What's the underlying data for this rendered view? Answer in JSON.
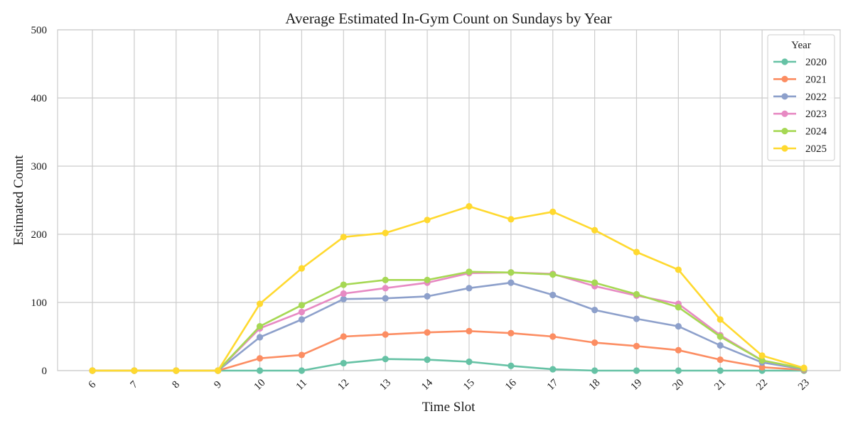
{
  "chart_data": {
    "type": "line",
    "title": "Average Estimated In-Gym Count on Sundays by Year",
    "xlabel": "Time Slot",
    "ylabel": "Estimated Count",
    "categories": [
      "6",
      "7",
      "8",
      "9",
      "10",
      "11",
      "12",
      "13",
      "14",
      "15",
      "16",
      "17",
      "18",
      "19",
      "20",
      "21",
      "22",
      "23"
    ],
    "ylim": [
      0,
      500
    ],
    "yticks": [
      0,
      100,
      200,
      300,
      400,
      500
    ],
    "grid": true,
    "legend": {
      "title": "Year",
      "placement": "top-right"
    },
    "series": [
      {
        "name": "2020",
        "color": "#66c2a5",
        "values": [
          0,
          0,
          0,
          0,
          0,
          0,
          11,
          17,
          16,
          13,
          7,
          2,
          0,
          0,
          0,
          0,
          0,
          0
        ]
      },
      {
        "name": "2021",
        "color": "#fc8d62",
        "values": [
          0,
          0,
          0,
          0,
          18,
          23,
          50,
          53,
          56,
          58,
          55,
          50,
          41,
          36,
          30,
          16,
          5,
          1
        ]
      },
      {
        "name": "2022",
        "color": "#8da0cb",
        "values": [
          0,
          0,
          0,
          0,
          49,
          75,
          105,
          106,
          109,
          121,
          129,
          111,
          89,
          76,
          65,
          37,
          12,
          2
        ]
      },
      {
        "name": "2023",
        "color": "#e78ac3",
        "values": [
          0,
          0,
          0,
          0,
          62,
          86,
          113,
          121,
          129,
          143,
          144,
          142,
          124,
          110,
          98,
          52,
          15,
          3
        ]
      },
      {
        "name": "2024",
        "color": "#a6d854",
        "values": [
          0,
          0,
          0,
          0,
          65,
          96,
          126,
          133,
          133,
          145,
          144,
          141,
          129,
          112,
          93,
          50,
          15,
          3
        ]
      },
      {
        "name": "2025",
        "color": "#ffd92f",
        "values": [
          0,
          0,
          0,
          0,
          98,
          150,
          196,
          202,
          221,
          241,
          222,
          233,
          206,
          174,
          148,
          75,
          22,
          4
        ]
      }
    ]
  }
}
